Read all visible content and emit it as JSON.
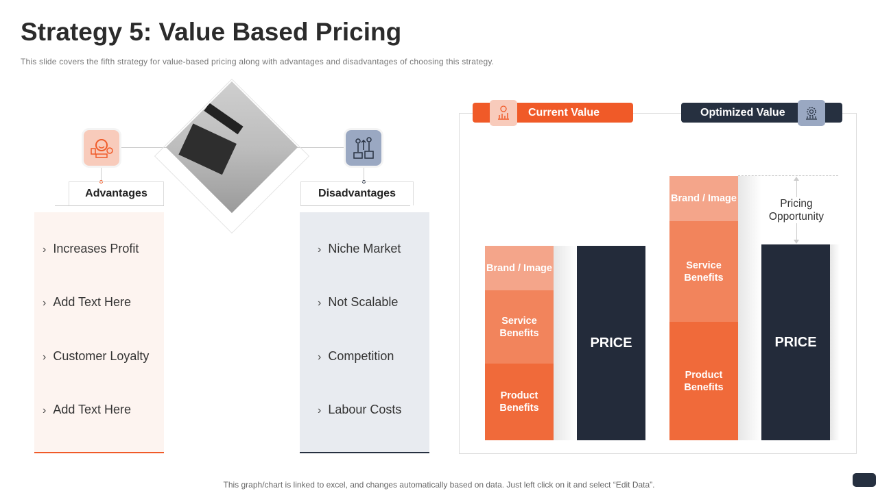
{
  "title": "Strategy 5: Value Based Pricing",
  "subtitle": "This slide covers the fifth strategy for value-based pricing along with advantages and disadvantages of choosing this strategy.",
  "advantages": {
    "label": "Advantages",
    "items": [
      "Increases Profit",
      "Add Text Here",
      "Customer Loyalty",
      "Add Text Here"
    ]
  },
  "disadvantages": {
    "label": "Disadvantages",
    "items": [
      "Niche Market",
      "Not Scalable",
      "Competition",
      "Labour Costs"
    ]
  },
  "chevron": "›",
  "current": {
    "label": "Current Value",
    "segments": [
      "Brand / Image",
      "Service Benefits",
      "Product Benefits"
    ],
    "price": "PRICE"
  },
  "optimized": {
    "label": "Optimized Value",
    "segments": [
      "Brand / Image",
      "Service Benefits",
      "Product Benefits"
    ],
    "price": "PRICE"
  },
  "pricing_opportunity": "Pricing Opportunity",
  "footer": "This graph/chart is linked to excel, and changes automatically based on data. Just left click on it and select “Edit Data”.",
  "colors": {
    "orange": "#f05a28",
    "dark": "#263040",
    "brand": "#f4a58a",
    "service": "#f2845c",
    "product": "#f06a3a"
  }
}
